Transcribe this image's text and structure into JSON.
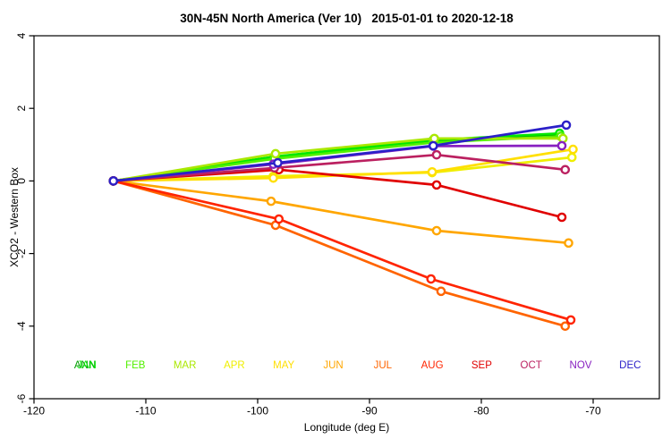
{
  "chart_data": {
    "type": "line",
    "title": "30N-45N North America (Ver 10)   2015-01-01 to 2020-12-18",
    "xlabel": "Longitude (deg E)",
    "ylabel": "XCO2 - Western Box",
    "xlim": [
      -120,
      -64
    ],
    "ylim": [
      -6,
      4
    ],
    "x_ticks": [
      -120,
      -110,
      -100,
      -90,
      -80,
      -70
    ],
    "y_ticks": [
      4,
      2,
      0,
      -2,
      -4,
      -6
    ],
    "grid": false,
    "legend_position": "bottom-inside",
    "marker": "open-circle",
    "series": [
      {
        "name": "ANN",
        "color": "#009C00",
        "x": [
          -112.9,
          -98.5,
          -84.3,
          -73.0
        ],
        "y": [
          0,
          0.64,
          1.1,
          1.27
        ]
      },
      {
        "name": "JAN",
        "color": "#00E800",
        "x": [
          -112.9,
          -98.5,
          -84.3,
          -73.0
        ],
        "y": [
          0,
          0.67,
          1.13,
          1.31
        ]
      },
      {
        "name": "FEB",
        "color": "#52F000",
        "x": [
          -112.9,
          -98.5,
          -84.3,
          -72.9
        ],
        "y": [
          0,
          0.61,
          1.06,
          1.23
        ]
      },
      {
        "name": "MAR",
        "color": "#AAE800",
        "x": [
          -112.9,
          -98.4,
          -84.2,
          -72.7
        ],
        "y": [
          0,
          0.75,
          1.17,
          1.17
        ]
      },
      {
        "name": "APR",
        "color": "#EFEF00",
        "x": [
          -112.9,
          -98.6,
          -84.4,
          -71.9
        ],
        "y": [
          0,
          0.13,
          0.23,
          0.65
        ]
      },
      {
        "name": "MAY",
        "color": "#FFDF00",
        "x": [
          -112.9,
          -98.6,
          -84.4,
          -71.8
        ],
        "y": [
          0,
          0.08,
          0.25,
          0.87
        ]
      },
      {
        "name": "JUN",
        "color": "#FFA600",
        "x": [
          -112.9,
          -98.8,
          -84.0,
          -72.2
        ],
        "y": [
          0,
          -0.56,
          -1.37,
          -1.71
        ]
      },
      {
        "name": "JUL",
        "color": "#FF6400",
        "x": [
          -112.9,
          -98.4,
          -83.6,
          -72.5
        ],
        "y": [
          0,
          -1.22,
          -3.04,
          -4.0
        ]
      },
      {
        "name": "AUG",
        "color": "#FF2400",
        "x": [
          -112.9,
          -98.1,
          -84.5,
          -72.0
        ],
        "y": [
          0,
          -1.05,
          -2.7,
          -3.83
        ]
      },
      {
        "name": "SEP",
        "color": "#E00000",
        "x": [
          -112.9,
          -98.1,
          -84.0,
          -72.8
        ],
        "y": [
          0,
          0.31,
          -0.11,
          -1.0
        ]
      },
      {
        "name": "OCT",
        "color": "#BB2060",
        "x": [
          -112.9,
          -98.5,
          -84.0,
          -72.5
        ],
        "y": [
          0,
          0.36,
          0.72,
          0.31
        ]
      },
      {
        "name": "NOV",
        "color": "#8820C0",
        "x": [
          -112.9,
          -98.6,
          -84.3,
          -72.8
        ],
        "y": [
          0,
          0.46,
          0.96,
          0.97
        ]
      },
      {
        "name": "DEC",
        "color": "#2B20C8",
        "x": [
          -112.9,
          -98.2,
          -84.3,
          -72.4
        ],
        "y": [
          0,
          0.5,
          0.97,
          1.54
        ]
      }
    ],
    "legend": [
      {
        "label": "ANN",
        "color": "#009C00",
        "slot": 0,
        "dx": -1
      },
      {
        "label": "JAN",
        "color": "#00E800",
        "slot": 0,
        "dx": 1
      },
      {
        "label": "FEB",
        "color": "#52F000",
        "slot": 1,
        "dx": 0
      },
      {
        "label": "MAR",
        "color": "#AAE800",
        "slot": 2,
        "dx": 0
      },
      {
        "label": "APR",
        "color": "#EFEF00",
        "slot": 3,
        "dx": 0
      },
      {
        "label": "MAY",
        "color": "#FFDF00",
        "slot": 4,
        "dx": 0
      },
      {
        "label": "JUN",
        "color": "#FFA600",
        "slot": 5,
        "dx": 0
      },
      {
        "label": "JUL",
        "color": "#FF6400",
        "slot": 6,
        "dx": 0
      },
      {
        "label": "AUG",
        "color": "#FF2400",
        "slot": 7,
        "dx": 0
      },
      {
        "label": "SEP",
        "color": "#E00000",
        "slot": 8,
        "dx": 0
      },
      {
        "label": "OCT",
        "color": "#BB2060",
        "slot": 9,
        "dx": 0
      },
      {
        "label": "NOV",
        "color": "#8820C0",
        "slot": 10,
        "dx": 0
      },
      {
        "label": "DEC",
        "color": "#2B20C8",
        "slot": 11,
        "dx": 0
      }
    ]
  }
}
